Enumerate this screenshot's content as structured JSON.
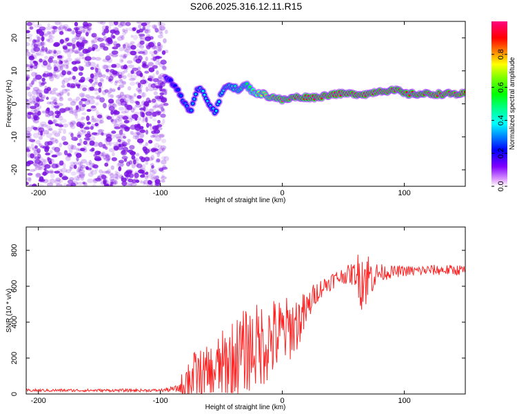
{
  "title": "S206.2025.316.12.11.R15",
  "colors": {
    "signal": "#ff2222",
    "axis": "#000000",
    "cloud": "#7a10e0"
  },
  "chart_data": [
    {
      "type": "heatmap",
      "name": "spectrogram",
      "xlabel": "Height of straight line (km)",
      "ylabel": "Frequency (Hz)",
      "xlim": [
        -210,
        150
      ],
      "ylim": [
        -25,
        25
      ],
      "xticks": [
        "-200",
        "-100",
        "0",
        "100"
      ],
      "xtick_values": [
        -200,
        -100,
        0,
        100
      ],
      "yticks": [
        "20",
        "10",
        "0",
        "-10",
        "-20"
      ],
      "ytick_values": [
        20,
        10,
        0,
        -10,
        -20
      ],
      "colorbar": {
        "label": "Normalized spectral amplitude",
        "range": [
          0,
          1
        ],
        "ticks": [
          "0.0",
          "0.2",
          "0.4",
          "0.6",
          "0.8"
        ],
        "tick_values": [
          0.0,
          0.2,
          0.4,
          0.6,
          0.8
        ]
      },
      "noise_region_x": [
        -210,
        -95
      ],
      "signal_track": {
        "x": [
          -95,
          -85,
          -80,
          -75,
          -70,
          -65,
          -60,
          -55,
          -50,
          -45,
          -40,
          -35,
          -30,
          -25,
          -20,
          -15,
          -10,
          -5,
          0,
          10,
          20,
          30,
          40,
          50,
          60,
          70,
          80,
          90,
          95,
          100,
          110,
          120,
          130,
          140,
          150
        ],
        "freq": [
          8,
          4,
          0,
          -3,
          5,
          4,
          0,
          -3,
          3,
          6,
          5,
          4,
          6,
          4,
          3,
          3,
          2,
          2,
          1,
          2,
          2,
          2,
          3,
          3,
          3,
          3,
          4,
          4,
          4,
          3,
          3,
          3,
          3,
          3,
          3
        ],
        "amplitude": [
          0.15,
          0.25,
          0.3,
          0.3,
          0.35,
          0.4,
          0.35,
          0.35,
          0.4,
          0.45,
          0.45,
          0.5,
          0.5,
          0.6,
          0.7,
          0.75,
          0.8,
          0.85,
          0.85,
          0.9,
          0.9,
          0.95,
          0.95,
          0.95,
          0.95,
          0.95,
          0.95,
          0.95,
          0.95,
          0.9,
          0.9,
          0.95,
          0.95,
          0.95,
          0.95
        ]
      }
    },
    {
      "type": "line",
      "name": "snr",
      "xlabel": "Height of straight line (km)",
      "ylabel": "SNR (10 * v/v)",
      "xlim": [
        -210,
        150
      ],
      "ylim": [
        0,
        930
      ],
      "xticks": [
        "-200",
        "-100",
        "0",
        "100"
      ],
      "xtick_values": [
        -200,
        -100,
        0,
        100
      ],
      "yticks": [
        "0",
        "200",
        "400",
        "600",
        "800"
      ],
      "ytick_values": [
        0,
        200,
        400,
        600,
        800
      ],
      "envelope": {
        "x": [
          -210,
          -100,
          -85,
          -80,
          -75,
          -70,
          -60,
          -50,
          -40,
          -30,
          -20,
          -10,
          0,
          10,
          20,
          25,
          30,
          40,
          50,
          60,
          65,
          70,
          75,
          80,
          90,
          100,
          110,
          120,
          130,
          140,
          150
        ],
        "base": [
          20,
          20,
          30,
          60,
          80,
          100,
          110,
          150,
          200,
          240,
          270,
          300,
          340,
          380,
          460,
          540,
          580,
          630,
          660,
          670,
          660,
          650,
          660,
          675,
          680,
          685,
          685,
          690,
          690,
          690,
          690
        ],
        "spread": [
          8,
          8,
          20,
          120,
          160,
          140,
          160,
          200,
          220,
          240,
          240,
          240,
          200,
          170,
          110,
          70,
          55,
          50,
          45,
          70,
          200,
          160,
          80,
          50,
          35,
          30,
          30,
          30,
          30,
          30,
          30
        ]
      }
    }
  ]
}
